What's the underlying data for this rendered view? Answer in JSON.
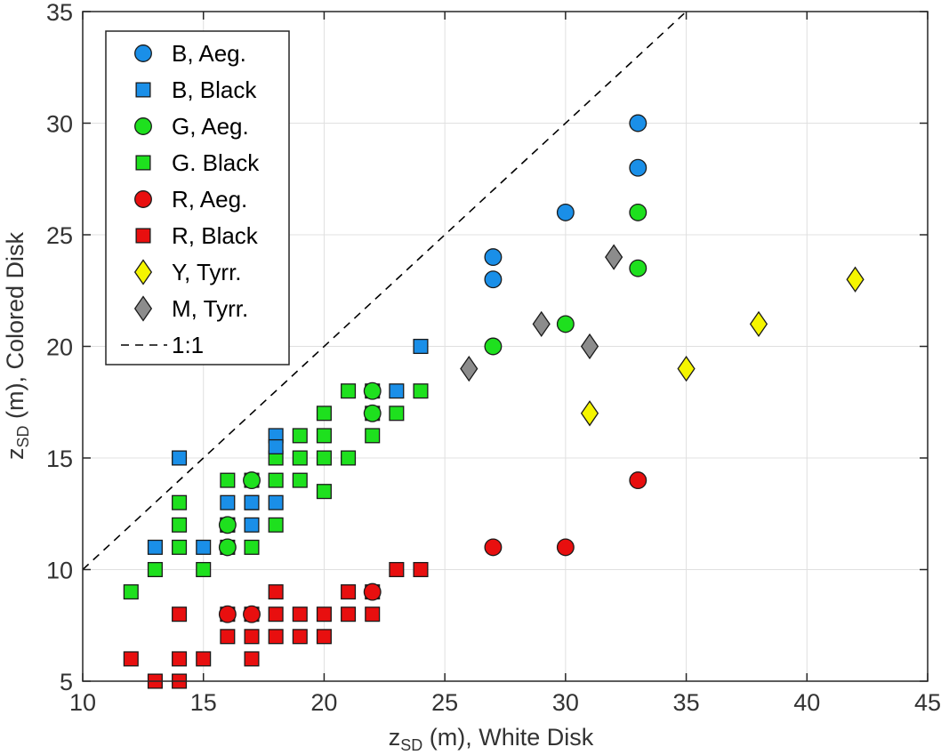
{
  "chart_data": {
    "type": "scatter",
    "xlabel": {
      "main": "z",
      "sub": "SD",
      "rest": " (m), White Disk"
    },
    "ylabel": {
      "main": "z",
      "sub": "SD",
      "rest": " (m), Colored Disk"
    },
    "xlim": [
      10,
      45
    ],
    "ylim": [
      5,
      35
    ],
    "xticks": [
      10,
      15,
      20,
      25,
      30,
      35,
      40,
      45
    ],
    "yticks": [
      5,
      10,
      15,
      20,
      25,
      30,
      35
    ],
    "xtick_labels": [
      "10",
      "15",
      "20",
      "25",
      "30",
      "35",
      "40",
      "45"
    ],
    "ytick_labels": [
      "5",
      "10",
      "15",
      "20",
      "25",
      "30",
      "35"
    ],
    "grid": true,
    "legend_position": "top-left",
    "series": [
      {
        "name": "B, Aeg.",
        "marker": "circle",
        "color": "#1a8fe8",
        "points": [
          [
            27,
            24
          ],
          [
            27,
            23
          ],
          [
            30,
            26
          ],
          [
            33,
            30
          ],
          [
            33,
            28
          ]
        ]
      },
      {
        "name": "B, Black",
        "marker": "square",
        "color": "#1a8fe8",
        "points": [
          [
            14,
            15
          ],
          [
            13,
            11
          ],
          [
            15,
            11
          ],
          [
            16,
            13
          ],
          [
            16,
            12
          ],
          [
            17,
            13
          ],
          [
            17,
            12
          ],
          [
            18,
            16
          ],
          [
            18,
            15.5
          ],
          [
            18,
            13
          ],
          [
            23,
            18
          ],
          [
            24,
            20
          ]
        ]
      },
      {
        "name": "G, Aeg.",
        "marker": "circle",
        "color": "#1ee01e",
        "points": [
          [
            16,
            12
          ],
          [
            16,
            11
          ],
          [
            17,
            14
          ],
          [
            22,
            18
          ],
          [
            22,
            17
          ],
          [
            27,
            20
          ],
          [
            30,
            21
          ],
          [
            33,
            26
          ],
          [
            33,
            23.5
          ]
        ]
      },
      {
        "name": "G. Black",
        "marker": "square",
        "color": "#1ee01e",
        "points": [
          [
            12,
            9
          ],
          [
            13,
            10
          ],
          [
            14,
            13
          ],
          [
            14,
            12
          ],
          [
            14,
            11
          ],
          [
            15,
            10
          ],
          [
            16,
            14
          ],
          [
            16,
            12
          ],
          [
            16,
            11
          ],
          [
            17,
            14
          ],
          [
            17,
            13
          ],
          [
            17,
            11
          ],
          [
            18,
            15
          ],
          [
            18,
            14
          ],
          [
            18,
            12
          ],
          [
            19,
            16
          ],
          [
            19,
            15
          ],
          [
            19,
            14
          ],
          [
            20,
            17
          ],
          [
            20,
            16
          ],
          [
            20,
            15
          ],
          [
            20,
            13.5
          ],
          [
            21,
            18
          ],
          [
            21,
            15
          ],
          [
            22,
            18
          ],
          [
            22,
            17
          ],
          [
            22,
            16
          ],
          [
            23,
            17
          ],
          [
            24,
            18
          ]
        ]
      },
      {
        "name": "R, Aeg.",
        "marker": "circle",
        "color": "#e80f0f",
        "points": [
          [
            16,
            8
          ],
          [
            17,
            8
          ],
          [
            22,
            9
          ],
          [
            27,
            11
          ],
          [
            30,
            11
          ],
          [
            33,
            14
          ]
        ]
      },
      {
        "name": "R, Black",
        "marker": "square",
        "color": "#e80f0f",
        "points": [
          [
            12,
            6
          ],
          [
            13,
            5
          ],
          [
            14,
            5
          ],
          [
            14,
            6
          ],
          [
            14,
            8
          ],
          [
            15,
            6
          ],
          [
            16,
            8
          ],
          [
            16,
            7
          ],
          [
            17,
            8
          ],
          [
            17,
            7
          ],
          [
            17,
            6
          ],
          [
            18,
            9
          ],
          [
            18,
            8
          ],
          [
            18,
            7
          ],
          [
            19,
            8
          ],
          [
            19,
            7
          ],
          [
            20,
            8
          ],
          [
            20,
            7
          ],
          [
            21,
            9
          ],
          [
            21,
            8
          ],
          [
            22,
            9
          ],
          [
            22,
            8
          ],
          [
            23,
            10
          ],
          [
            24,
            10
          ]
        ]
      },
      {
        "name": "Y, Tyrr.",
        "marker": "diamond",
        "color": "#f5f500",
        "points": [
          [
            31,
            17
          ],
          [
            35,
            19
          ],
          [
            38,
            21
          ],
          [
            42,
            23
          ]
        ]
      },
      {
        "name": "M, Tyrr.",
        "marker": "diamond",
        "color": "#8c8c8c",
        "points": [
          [
            26,
            19
          ],
          [
            29,
            21
          ],
          [
            31,
            20
          ],
          [
            32,
            24
          ]
        ]
      },
      {
        "name": "1:1",
        "marker": "dashed-line",
        "color": "#000000",
        "points": [
          [
            10,
            10
          ],
          [
            35,
            35
          ]
        ]
      }
    ]
  }
}
